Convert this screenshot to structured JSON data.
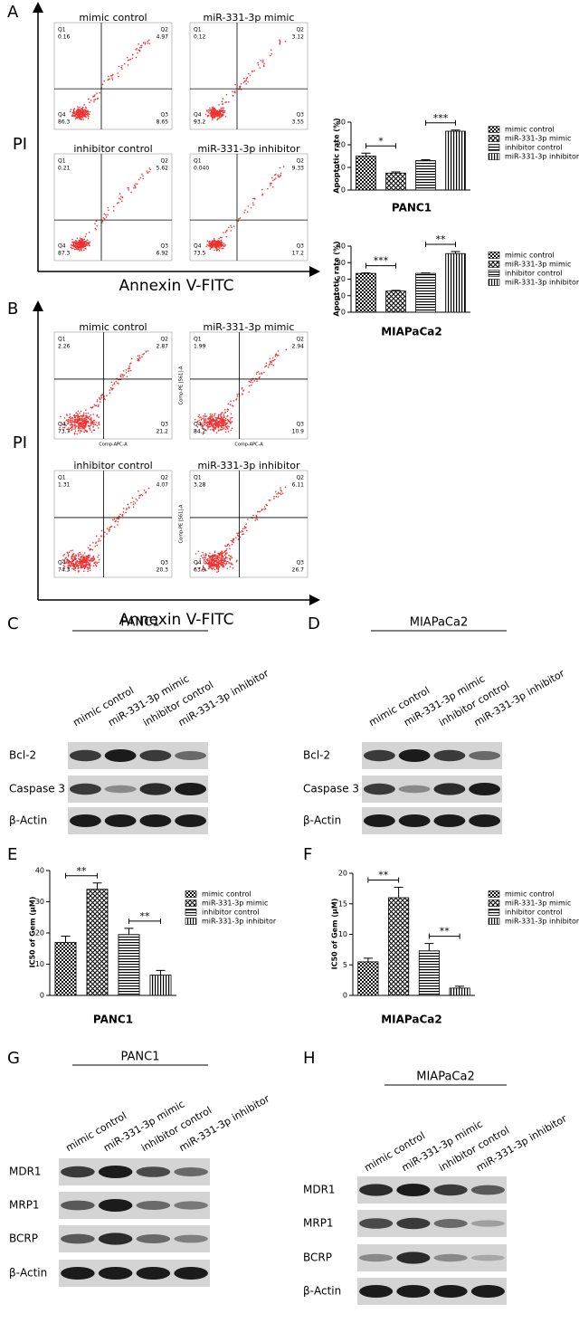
{
  "panel_labels": [
    "A",
    "B",
    "C",
    "D",
    "E",
    "F",
    "G",
    "H"
  ],
  "flow": [
    {
      "y_axis": "PI",
      "x_axis": "Annexin V-FITC",
      "plots": [
        {
          "title": "mimic control",
          "quadrants": [
            {
              "name": "Q1",
              "value": "0.16"
            },
            {
              "name": "Q2",
              "value": "4.97"
            },
            {
              "name": "Q4",
              "value": "86.3"
            },
            {
              "name": "Q3",
              "value": "8.65"
            }
          ]
        },
        {
          "title": "miR-331-3p mimic",
          "quadrants": [
            {
              "name": "Q1",
              "value": "0.12"
            },
            {
              "name": "Q2",
              "value": "3.12"
            },
            {
              "name": "Q4",
              "value": "93.2"
            },
            {
              "name": "Q3",
              "value": "3.55"
            }
          ]
        },
        {
          "title": "inhibitor control",
          "quadrants": [
            {
              "name": "Q1",
              "value": "0.21"
            },
            {
              "name": "Q2",
              "value": "5.62"
            },
            {
              "name": "Q4",
              "value": "87.3"
            },
            {
              "name": "Q3",
              "value": "6.92"
            }
          ]
        },
        {
          "title": "miR-331-3p inhibitor",
          "quadrants": [
            {
              "name": "Q1",
              "value": "0.040"
            },
            {
              "name": "Q2",
              "value": "9.33"
            },
            {
              "name": "Q4",
              "value": "73.5"
            },
            {
              "name": "Q3",
              "value": "17.2"
            }
          ]
        }
      ]
    },
    {
      "y_axis": "PI",
      "x_axis": "Annexin V-FITC",
      "plots": [
        {
          "title": "mimic control",
          "x_label": "Comp-APC-A",
          "quadrants": [
            {
              "name": "Q1",
              "value": "2.26"
            },
            {
              "name": "Q2",
              "value": "2.87"
            },
            {
              "name": "Q4",
              "value": "73.7"
            },
            {
              "name": "Q3",
              "value": "21.2"
            }
          ]
        },
        {
          "title": "miR-331-3p mimic",
          "x_label": "Comp-APC-A",
          "y_label": "Comp-PE [561]-A",
          "quadrants": [
            {
              "name": "Q1",
              "value": "1.99"
            },
            {
              "name": "Q2",
              "value": "2.94"
            },
            {
              "name": "Q4",
              "value": "84.2"
            },
            {
              "name": "Q3",
              "value": "10.9"
            }
          ]
        },
        {
          "title": "inhibitor control",
          "quadrants": [
            {
              "name": "Q1",
              "value": "1.31"
            },
            {
              "name": "Q2",
              "value": "4.07"
            },
            {
              "name": "Q4",
              "value": "74.3"
            },
            {
              "name": "Q3",
              "value": "20.3"
            }
          ]
        },
        {
          "title": "miR-331-3p inhibitor",
          "y_label": "Comp-PE [561]-A",
          "quadrants": [
            {
              "name": "Q1",
              "value": "3.28"
            },
            {
              "name": "Q2",
              "value": "6.11"
            },
            {
              "name": "Q4",
              "value": "63.9"
            },
            {
              "name": "Q3",
              "value": "26.7"
            }
          ]
        }
      ]
    }
  ],
  "chart_data": [
    {
      "type": "bar",
      "ylabel": "Apoptotic rate (%)",
      "xlabel": "PANC1",
      "categories": [
        "mimic control",
        "miR-331-3p mimic",
        "inhibitor control",
        "miR-331-3p inhibitor"
      ],
      "values": [
        15,
        7.5,
        13,
        26
      ],
      "errors": [
        1.3,
        0.5,
        0.4,
        0.5
      ],
      "color": "#000000",
      "ylim": [
        0,
        30
      ],
      "yticks": [
        0,
        10,
        20,
        30
      ],
      "annotations": [
        "*",
        "***"
      ]
    },
    {
      "type": "bar",
      "ylabel": "Apoptotic rate (%)",
      "xlabel": "MIAPaCa2",
      "categories": [
        "mimic control",
        "miR-331-3p mimic",
        "inhibitor control",
        "miR-331-3p inhibitor"
      ],
      "values": [
        23.5,
        12.8,
        23.5,
        35.5
      ],
      "errors": [
        0.3,
        0.4,
        0.3,
        1.2
      ],
      "color": "#000000",
      "ylim": [
        0,
        40
      ],
      "yticks": [
        0,
        10,
        20,
        30,
        40
      ],
      "annotations": [
        "***",
        "**"
      ]
    },
    {
      "type": "bar",
      "ylabel": "IC50 of Gem (μM)",
      "xlabel": "PANC1",
      "categories": [
        "mimic control",
        "miR-331-3p mimic",
        "inhibitor control",
        "miR-331-3p inhibitor"
      ],
      "values": [
        17,
        34,
        19.5,
        6.5
      ],
      "errors": [
        2,
        2,
        2,
        1.5
      ],
      "color": "#000000",
      "ylim": [
        0,
        40
      ],
      "yticks": [
        0,
        10,
        20,
        30,
        40
      ],
      "annotations": [
        "**",
        "**"
      ]
    },
    {
      "type": "bar",
      "ylabel": "IC50 of Gem (μM)",
      "xlabel": "MIAPaCa2",
      "categories": [
        "mimic control",
        "miR-331-3p mimic",
        "inhibitor control",
        "miR-331-3p inhibitor"
      ],
      "values": [
        5.5,
        16,
        7.3,
        1.2
      ],
      "errors": [
        0.6,
        1.7,
        1.2,
        0.3
      ],
      "color": "#000000",
      "ylim": [
        0,
        20
      ],
      "yticks": [
        0,
        5,
        10,
        15,
        20
      ],
      "annotations": [
        "**",
        "**"
      ]
    }
  ],
  "blots": [
    {
      "title": "PANC1",
      "lanes": [
        "mimic control",
        "miR-331-3p mimic",
        "inhibitor control",
        "miR-331-3p inhibitor"
      ],
      "rows": [
        "Bcl-2",
        "Caspase 3",
        "β-Actin"
      ]
    },
    {
      "title": "MIAPaCa2",
      "lanes": [
        "mimic control",
        "miR-331-3p mimic",
        "inhibitor control",
        "miR-331-3p inhibitor"
      ],
      "rows": [
        "Bcl-2",
        "Caspase 3",
        "β-Actin"
      ]
    },
    {
      "title": "PANC1",
      "lanes": [
        "mimic control",
        "miR-331-3p mimic",
        "inhibitor control",
        "miR-331-3p inhibitor"
      ],
      "rows": [
        "MDR1",
        "MRP1",
        "BCRP",
        "β-Actin"
      ]
    },
    {
      "title": "MIAPaCa2",
      "lanes": [
        "mimic control",
        "miR-331-3p mimic",
        "inhibitor control",
        "miR-331-3p inhibitor"
      ],
      "rows": [
        "MDR1",
        "MRP1",
        "BCRP",
        "β-Actin"
      ]
    }
  ]
}
